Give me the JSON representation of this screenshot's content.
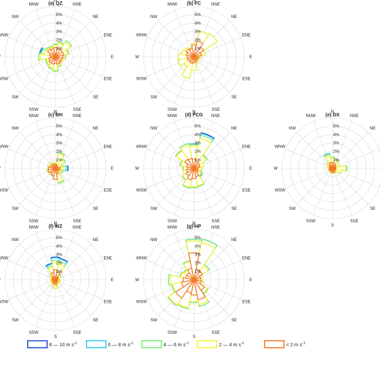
{
  "chart_data": [
    {
      "type": "windrose",
      "title": "(a) QZ",
      "directions": [
        "N",
        "NNE",
        "NE",
        "ENE",
        "E",
        "ESE",
        "SE",
        "SSE",
        "S",
        "SSW",
        "SW",
        "WSW",
        "W",
        "WNW",
        "NW",
        "NNW"
      ],
      "ring_labels": [
        "1%",
        "2%",
        "3%",
        "4%",
        "5%"
      ],
      "series": [
        {
          "name": "< 2 m s-1",
          "values": [
            1.1,
            1.0,
            1.0,
            1.0,
            0.9,
            0.8,
            0.8,
            0.9,
            0.8,
            0.9,
            0.9,
            0.8,
            0.6,
            0.7,
            1.1,
            1.0
          ]
        },
        {
          "name": "2 — 4 m s-1",
          "values": [
            1.4,
            1.7,
            2.1,
            1.5,
            1.1,
            1.0,
            0.9,
            1.1,
            1.6,
            1.4,
            1.2,
            1.1,
            1.8,
            1.4,
            1.3,
            1.2
          ]
        },
        {
          "name": "4 — 6 m s-1",
          "values": [
            1.5,
            1.8,
            2.3,
            1.6,
            1.2,
            1.0,
            0.9,
            1.2,
            1.7,
            1.5,
            1.3,
            1.2,
            2.0,
            1.7,
            1.4,
            1.3
          ]
        },
        {
          "name": "6 — 8 m s-1",
          "values": [
            1.5,
            1.8,
            2.3,
            1.6,
            1.2,
            1.0,
            0.9,
            1.2,
            1.7,
            1.5,
            1.3,
            1.2,
            2.0,
            1.8,
            1.4,
            1.3
          ]
        },
        {
          "name": "8 — 10 m s-1",
          "values": [
            1.5,
            1.8,
            2.3,
            1.6,
            1.2,
            1.0,
            0.9,
            1.2,
            1.7,
            1.5,
            1.3,
            1.2,
            2.0,
            1.9,
            1.4,
            1.3
          ]
        }
      ]
    },
    {
      "type": "windrose",
      "title": "(b) FC",
      "directions": [
        "N",
        "NNE",
        "NE",
        "ENE",
        "E",
        "ESE",
        "SE",
        "SSE",
        "S",
        "SSW",
        "SW",
        "WSW",
        "W",
        "WNW",
        "NW",
        "NNW"
      ],
      "ring_labels": [
        "1%",
        "2%",
        "3%",
        "4%",
        "5%"
      ],
      "series": [
        {
          "name": "< 2 m s-1",
          "values": [
            1.4,
            1.9,
            1.4,
            0.9,
            0.6,
            0.5,
            0.5,
            0.6,
            0.7,
            0.8,
            0.7,
            0.8,
            0.8,
            0.9,
            1.1,
            1.0
          ]
        },
        {
          "name": "2 — 4 m s-1",
          "values": [
            1.6,
            3.1,
            3.3,
            1.4,
            0.8,
            0.7,
            0.6,
            0.8,
            1.6,
            2.6,
            1.4,
            1.9,
            1.8,
            1.5,
            1.3,
            1.1
          ]
        },
        {
          "name": "4 — 6 m s-1",
          "values": [
            1.6,
            3.1,
            3.3,
            1.4,
            0.8,
            0.7,
            0.6,
            0.8,
            1.6,
            2.6,
            1.4,
            1.9,
            1.8,
            1.5,
            1.3,
            1.1
          ]
        },
        {
          "name": "6 — 8 m s-1",
          "values": [
            1.6,
            3.1,
            3.3,
            1.4,
            0.8,
            0.7,
            0.6,
            0.8,
            1.6,
            2.6,
            1.4,
            1.9,
            1.8,
            1.5,
            1.3,
            1.1
          ]
        },
        {
          "name": "8 — 10 m s-1",
          "values": [
            1.6,
            3.1,
            3.3,
            1.4,
            0.8,
            0.7,
            0.6,
            0.8,
            1.6,
            2.6,
            1.4,
            1.9,
            1.8,
            1.5,
            1.3,
            1.1
          ]
        }
      ]
    },
    {
      "type": "windrose",
      "title": "(c) BH",
      "directions": [
        "N",
        "NNE",
        "NE",
        "ENE",
        "E",
        "ESE",
        "SE",
        "SSE",
        "S",
        "SSW",
        "SW",
        "WSW",
        "W",
        "WNW",
        "NW",
        "NNW"
      ],
      "ring_labels": [
        "1%",
        "2%",
        "3%",
        "4%",
        "5%"
      ],
      "series": [
        {
          "name": "< 2 m s-1",
          "values": [
            0.5,
            0.4,
            0.3,
            0.3,
            0.6,
            0.5,
            0.4,
            0.7,
            1.3,
            0.9,
            0.7,
            0.9,
            0.8,
            0.6,
            0.6,
            0.5
          ]
        },
        {
          "name": "2 — 4 m s-1",
          "values": [
            0.7,
            1.8,
            1.3,
            0.7,
            0.9,
            0.8,
            0.7,
            1.7,
            1.2,
            0.9,
            0.8,
            1.0,
            0.9,
            0.8,
            0.8,
            0.6
          ]
        },
        {
          "name": "4 — 6 m s-1",
          "values": [
            0.7,
            1.9,
            1.4,
            0.8,
            1.2,
            0.9,
            0.7,
            1.8,
            1.3,
            0.9,
            0.8,
            1.0,
            0.9,
            0.8,
            0.8,
            0.6
          ]
        },
        {
          "name": "6 — 8 m s-1",
          "values": [
            0.7,
            1.9,
            1.4,
            0.8,
            1.4,
            0.9,
            0.7,
            1.8,
            1.3,
            0.9,
            0.8,
            1.0,
            0.9,
            0.8,
            0.8,
            0.6
          ]
        },
        {
          "name": "8 — 10 m s-1",
          "values": [
            0.7,
            1.9,
            1.4,
            0.8,
            1.5,
            0.9,
            0.7,
            1.8,
            1.3,
            0.9,
            0.8,
            1.0,
            0.9,
            0.8,
            0.8,
            0.6
          ]
        }
      ]
    },
    {
      "type": "windrose",
      "title": "(d) FCG",
      "directions": [
        "N",
        "NNE",
        "NE",
        "ENE",
        "E",
        "ESE",
        "SE",
        "SSE",
        "S",
        "SSW",
        "SW",
        "WSW",
        "W",
        "WNW",
        "NW",
        "NNW"
      ],
      "ring_labels": [
        "1%",
        "2%",
        "3%",
        "4%",
        "5%"
      ],
      "series": [
        {
          "name": "< 2 m s-1",
          "values": [
            1.1,
            0.9,
            0.8,
            0.7,
            0.5,
            0.5,
            0.6,
            1.0,
            1.2,
            1.4,
            1.1,
            0.9,
            0.8,
            0.9,
            1.3,
            1.2
          ]
        },
        {
          "name": "2 — 4 m s-1",
          "values": [
            2.6,
            3.6,
            1.8,
            1.2,
            0.9,
            0.8,
            1.0,
            2.1,
            2.2,
            2.3,
            1.6,
            1.3,
            1.2,
            1.6,
            2.5,
            2.8
          ]
        },
        {
          "name": "4 — 6 m s-1",
          "values": [
            2.8,
            4.0,
            1.9,
            1.2,
            0.9,
            0.9,
            1.1,
            2.2,
            2.3,
            2.4,
            1.7,
            1.3,
            1.3,
            1.7,
            2.6,
            3.0
          ]
        },
        {
          "name": "6 — 8 m s-1",
          "values": [
            2.9,
            4.2,
            1.9,
            1.2,
            0.9,
            0.9,
            1.2,
            2.2,
            2.3,
            2.4,
            1.7,
            1.3,
            1.3,
            1.7,
            2.6,
            3.0
          ]
        },
        {
          "name": "8 — 10 m s-1",
          "values": [
            2.9,
            4.3,
            1.9,
            1.2,
            0.9,
            0.9,
            1.2,
            2.2,
            2.3,
            2.4,
            1.7,
            1.3,
            1.3,
            1.7,
            2.6,
            3.0
          ]
        }
      ]
    },
    {
      "type": "windrose",
      "title": "(e) DX",
      "directions": [
        "N",
        "NNE",
        "NE",
        "ENE",
        "E",
        "ESE",
        "SE",
        "SSE",
        "S",
        "SSW",
        "SW",
        "WSW",
        "W",
        "WNW",
        "NW",
        "NNW"
      ],
      "ring_labels": [
        "1%",
        "2%",
        "3%",
        "4%",
        "5%"
      ],
      "series": [
        {
          "name": "< 2 m s-1",
          "values": [
            0.7,
            0.6,
            0.5,
            0.4,
            0.4,
            0.4,
            0.4,
            0.5,
            0.5,
            0.4,
            0.4,
            0.4,
            0.3,
            0.4,
            0.5,
            0.7
          ]
        },
        {
          "name": "2 — 4 m s-1",
          "values": [
            1.2,
            1.0,
            0.8,
            0.7,
            1.6,
            1.1,
            0.6,
            0.6,
            0.6,
            0.5,
            0.5,
            0.5,
            0.4,
            0.6,
            0.8,
            1.5
          ]
        },
        {
          "name": "4 — 6 m s-1",
          "values": [
            1.3,
            1.1,
            0.8,
            0.7,
            1.7,
            1.1,
            0.6,
            0.6,
            0.6,
            0.5,
            0.5,
            0.5,
            0.4,
            0.6,
            0.8,
            1.7
          ]
        },
        {
          "name": "6 — 8 m s-1",
          "values": [
            1.3,
            1.1,
            0.8,
            0.7,
            1.7,
            1.1,
            0.6,
            0.6,
            0.6,
            0.5,
            0.5,
            0.5,
            0.4,
            0.6,
            0.8,
            1.8
          ]
        },
        {
          "name": "8 — 10 m s-1",
          "values": [
            1.3,
            1.1,
            0.8,
            0.7,
            1.7,
            1.1,
            0.6,
            0.6,
            0.6,
            0.5,
            0.5,
            0.5,
            0.4,
            0.6,
            0.8,
            1.8
          ]
        }
      ]
    },
    {
      "type": "windrose",
      "title": "(f) WZ",
      "directions": [
        "N",
        "NNE",
        "NE",
        "ENE",
        "E",
        "ESE",
        "SE",
        "SSE",
        "S",
        "SSW",
        "SW",
        "WSW",
        "W",
        "WNW",
        "NW",
        "NNW"
      ],
      "ring_labels": [
        "1%",
        "2%",
        "3%",
        "4%",
        "5%"
      ],
      "series": [
        {
          "name": "< 2 m s-1",
          "values": [
            1.2,
            1.0,
            0.4,
            0.3,
            0.3,
            0.3,
            0.3,
            0.4,
            0.6,
            0.5,
            0.4,
            0.4,
            0.4,
            0.4,
            0.5,
            0.9
          ]
        },
        {
          "name": "2 — 4 m s-1",
          "values": [
            2.0,
            1.9,
            0.7,
            0.5,
            0.5,
            0.6,
            0.6,
            0.6,
            1.0,
            0.8,
            0.6,
            0.6,
            0.6,
            0.6,
            0.8,
            1.5
          ]
        },
        {
          "name": "4 — 6 m s-1",
          "values": [
            2.3,
            2.2,
            0.8,
            0.5,
            0.5,
            0.6,
            0.6,
            0.6,
            1.0,
            0.8,
            0.6,
            0.6,
            0.6,
            0.6,
            0.8,
            1.7
          ]
        },
        {
          "name": "6 — 8 m s-1",
          "values": [
            2.6,
            2.5,
            0.8,
            0.5,
            0.5,
            0.6,
            0.6,
            0.6,
            1.0,
            0.8,
            0.6,
            0.6,
            0.6,
            0.6,
            0.8,
            1.9
          ]
        },
        {
          "name": "8 — 10 m s-1",
          "values": [
            2.7,
            2.6,
            0.8,
            0.5,
            0.5,
            0.6,
            0.6,
            0.6,
            1.0,
            0.8,
            0.6,
            0.6,
            0.6,
            0.6,
            0.8,
            2.0
          ]
        }
      ]
    },
    {
      "type": "windrose",
      "title": "(g) HP",
      "directions": [
        "N",
        "NNE",
        "NE",
        "ENE",
        "E",
        "ESE",
        "SE",
        "SSE",
        "S",
        "SSW",
        "SW",
        "WSW",
        "W",
        "WNW",
        "NW",
        "NNW"
      ],
      "ring_labels": [
        "1%",
        "2%",
        "3%",
        "4%",
        "5%"
      ],
      "series": [
        {
          "name": "< 2 m s-1",
          "values": [
            3.2,
            1.3,
            1.2,
            0.8,
            0.8,
            0.9,
            1.5,
            2.4,
            1.8,
            1.6,
            2.6,
            1.5,
            1.3,
            1.0,
            1.0,
            1.4
          ]
        },
        {
          "name": "2 — 4 m s-1",
          "values": [
            4.6,
            4.5,
            2.0,
            1.0,
            1.0,
            1.2,
            1.9,
            3.0,
            2.6,
            3.4,
            3.6,
            2.6,
            2.8,
            1.6,
            1.4,
            2.2
          ]
        },
        {
          "name": "4 — 6 m s-1",
          "values": [
            4.8,
            4.9,
            2.2,
            1.0,
            1.0,
            1.2,
            2.0,
            3.2,
            2.7,
            3.5,
            3.7,
            2.7,
            3.0,
            1.7,
            1.5,
            2.3
          ]
        },
        {
          "name": "6 — 8 m s-1",
          "values": [
            4.8,
            4.9,
            2.2,
            1.0,
            1.0,
            1.2,
            2.0,
            3.2,
            2.7,
            3.5,
            3.7,
            2.7,
            3.0,
            1.7,
            1.5,
            2.3
          ]
        },
        {
          "name": "8 — 10 m s-1",
          "values": [
            4.8,
            4.9,
            2.2,
            1.0,
            1.0,
            1.2,
            2.0,
            3.2,
            2.7,
            3.5,
            3.7,
            2.7,
            3.0,
            1.7,
            1.5,
            2.3
          ]
        }
      ]
    }
  ],
  "legend": {
    "placement": "bottom",
    "items": [
      {
        "label_main": "8 — 10 m s",
        "label_sup": "-1",
        "color": "#1f4fd1"
      },
      {
        "label_main": "6 — 8 m s",
        "label_sup": "-1",
        "color": "#2fd0e8"
      },
      {
        "label_main": "4 — 6 m s",
        "label_sup": "-1",
        "color": "#7de87a"
      },
      {
        "label_main": "2 — 4 m s",
        "label_sup": "-1",
        "color": "#f3f332"
      },
      {
        "label_main": "< 2 m s",
        "label_sup": "-1",
        "color": "#f07a24"
      }
    ]
  },
  "colors": {
    "series": [
      "#f07a24",
      "#f3f332",
      "#7de87a",
      "#2fd0e8",
      "#1f4fd1"
    ],
    "grid": "#d9d9d9"
  }
}
